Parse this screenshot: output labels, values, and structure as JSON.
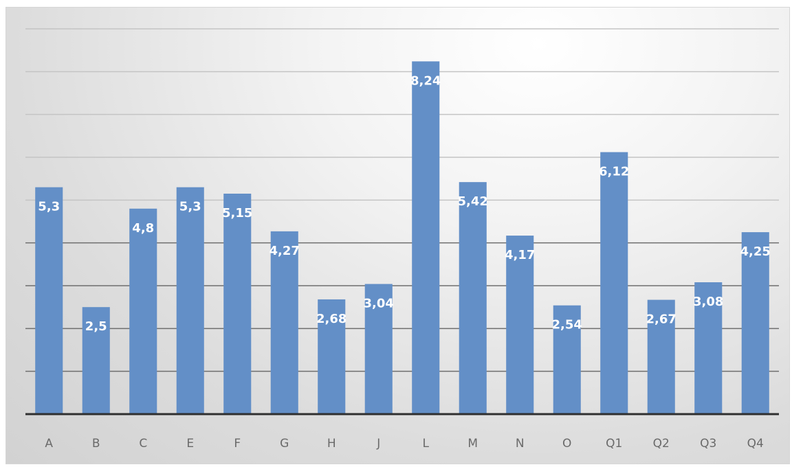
{
  "chart_data": {
    "type": "bar",
    "title": "",
    "xlabel": "",
    "ylabel": "",
    "categories": [
      "A",
      "B",
      "C",
      "E",
      "F",
      "G",
      "H",
      "J",
      "L",
      "M",
      "N",
      "O",
      "Q1",
      "Q2",
      "Q3",
      "Q4"
    ],
    "values": [
      5.3,
      2.5,
      4.8,
      5.3,
      5.15,
      4.27,
      2.68,
      3.04,
      8.24,
      5.42,
      4.17,
      2.54,
      6.12,
      2.67,
      3.08,
      4.25
    ],
    "data_labels": [
      "5,3",
      "2,5",
      "4,8",
      "5,3",
      "5,15",
      "4,27",
      "2,68",
      "3,04",
      "8,24",
      "5,42",
      "4,17",
      "2,54",
      "6,12",
      "2,67",
      "3,08",
      "4,25"
    ],
    "ylim": [
      0,
      9
    ],
    "y_gridlines": [
      1,
      2,
      3,
      4,
      5,
      6,
      7,
      8,
      9
    ],
    "y_tick_labels_visible": false,
    "grid": true,
    "legend": "none",
    "colors": {
      "bar": "#638fc7",
      "bar_label": "#ffffff",
      "axis_line": "#2f2f2f",
      "gridline": "#c4c4c4",
      "gridline_dark": "#6e6e6e",
      "tick_text": "#6a6a6a"
    }
  }
}
